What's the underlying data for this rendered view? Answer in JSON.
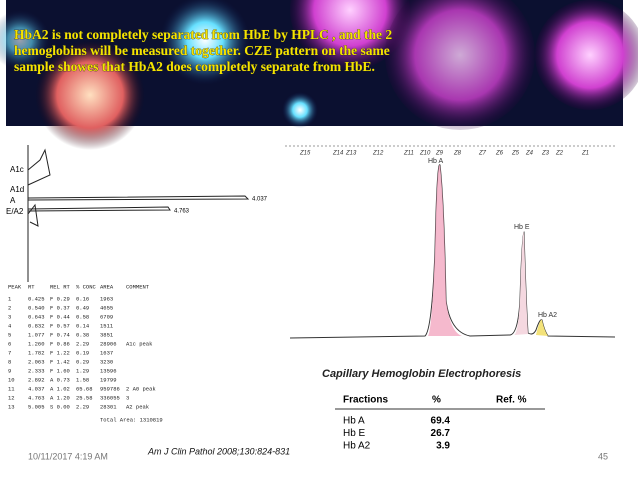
{
  "header": {
    "lines": [
      "HbA2 is not completely separated from HbE by HPLC , and the 2",
      "hemoglobins will  be measured together. CZE pattern on the same",
      "sample showes that  HbA2 does completely separate from HbE."
    ]
  },
  "hplc": {
    "peak_labels": [
      "A1c",
      "A1d",
      "A",
      "E/A2"
    ],
    "peak_values": [
      "4.037",
      "4.763"
    ],
    "table": {
      "columns": [
        "PEAK",
        "RT",
        "REL RT",
        "% CONC",
        "AREA",
        "COMMENT"
      ],
      "rows": [
        [
          "1",
          "0.425",
          "F 0.29",
          "0.16",
          "1963",
          ""
        ],
        [
          "2",
          "0.540",
          "F 0.37",
          "0.49",
          "4655",
          ""
        ],
        [
          "3",
          "0.643",
          "F 0.44",
          "0.58",
          "6709",
          ""
        ],
        [
          "4",
          "0.832",
          "F 0.57",
          "0.14",
          "1511",
          ""
        ],
        [
          "5",
          "1.077",
          "F 0.74",
          "0.38",
          "3851",
          ""
        ],
        [
          "6",
          "1.260",
          "F 0.86",
          "2.29",
          "28906",
          "A1c peak"
        ],
        [
          "7",
          "1.782",
          "F 1.22",
          "0.19",
          "1637",
          ""
        ],
        [
          "8",
          "2.063",
          "F 1.42",
          "0.29",
          "3230",
          ""
        ],
        [
          "9",
          "2.333",
          "F 1.60",
          "1.29",
          "13596",
          ""
        ],
        [
          "10",
          "2.892",
          "A 0.73",
          "1.58",
          "19799",
          ""
        ],
        [
          "11",
          "4.037",
          "A 1.02",
          "65.68",
          "959786",
          "2 A0 peak"
        ],
        [
          "12",
          "4.763",
          "A 1.20",
          "25.58",
          "336055",
          "3"
        ],
        [
          "13",
          "5.005",
          "S 0.00",
          "2.29",
          "28301",
          "A2 peak"
        ]
      ],
      "total": "Total Area: 1310819"
    }
  },
  "cze": {
    "zones": [
      "Z15",
      "Z14",
      "Z13",
      "Z12",
      "Z11",
      "Z10",
      "Z9",
      "Z8",
      "Z7",
      "Z6",
      "Z5",
      "Z4",
      "Z3",
      "Z2",
      "Z1"
    ],
    "peaks": [
      "Hb A",
      "Hb E",
      "Hb A2"
    ],
    "title": "Capillary Hemoglobin Electrophoresis",
    "table": {
      "columns": [
        "Fractions",
        "%",
        "Ref. %"
      ],
      "rows": [
        [
          "Hb A",
          "69.4"
        ],
        [
          "Hb E",
          "26.7"
        ],
        [
          "Hb A2",
          "3.9"
        ]
      ]
    }
  },
  "footer": {
    "date": "10/11/2017 4:19 AM",
    "citation": "Am J Clin Pathol 2008;130:824-831",
    "page": "45"
  }
}
